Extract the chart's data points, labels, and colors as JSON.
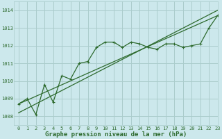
{
  "title": "Graphe pression niveau de la mer (hPa)",
  "background_color": "#cce8ec",
  "grid_color": "#aacccc",
  "line_color": "#2d6a2d",
  "xlim": [
    -0.5,
    23
  ],
  "ylim": [
    1007.5,
    1014.5
  ],
  "xticks": [
    0,
    1,
    2,
    3,
    4,
    5,
    6,
    7,
    8,
    9,
    10,
    11,
    12,
    13,
    14,
    15,
    16,
    17,
    18,
    19,
    20,
    21,
    22,
    23
  ],
  "yticks": [
    1008,
    1009,
    1010,
    1011,
    1012,
    1013,
    1014
  ],
  "line1_x": [
    0,
    1,
    2,
    3,
    4,
    5,
    6,
    7,
    8,
    9,
    10,
    11,
    12,
    13,
    14,
    15,
    16,
    17,
    18,
    19,
    20,
    21,
    22,
    23
  ],
  "line1_y": [
    1008.7,
    1009.0,
    1008.1,
    1009.8,
    1008.8,
    1010.3,
    1010.1,
    1011.0,
    1011.1,
    1011.9,
    1012.2,
    1012.2,
    1011.9,
    1012.2,
    1012.1,
    1011.9,
    1011.8,
    1012.1,
    1012.1,
    1011.9,
    1012.0,
    1012.1,
    1013.0,
    1013.7
  ],
  "line2_x": [
    0,
    23
  ],
  "line2_y": [
    1008.7,
    1013.7
  ],
  "line3_x": [
    0,
    23
  ],
  "line3_y": [
    1008.2,
    1014.0
  ],
  "tick_fontsize": 5,
  "label_fontsize": 6.5
}
